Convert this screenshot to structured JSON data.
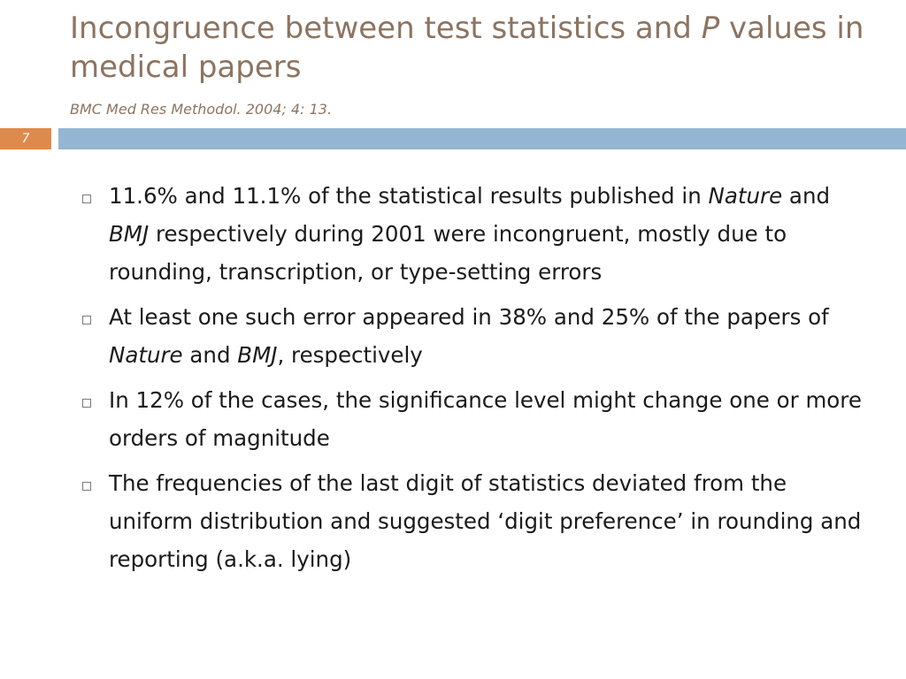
{
  "title": {
    "part1": "Incongruence between test statistics and ",
    "italic": "P",
    "part2": " values in medical papers"
  },
  "subtitle": "BMC Med Res Methodol. 2004; 4: 13.",
  "slide_number": "7",
  "colors": {
    "title": "#8c7461",
    "accent_orange": "#de8a4c",
    "accent_blue": "#94b6d2",
    "body_text": "#1a1a1a"
  },
  "bullets": [
    {
      "t1": "11.6% and 11.1% of the statistical results published in ",
      "i1": "Nature",
      "t2": " and ",
      "i2": "BMJ",
      "t3": " respectively during 2001 were incongruent, mostly due to rounding, transcription, or type-setting errors"
    },
    {
      "t1": "At least one such error appeared in 38% and 25% of the papers of ",
      "i1": "Nature",
      "t2": " and ",
      "i2": "BMJ",
      "t3": ", respectively"
    },
    {
      "t1": "In 12% of the cases, the significance level might change one or more orders of magnitude"
    },
    {
      "t1": "The frequencies of the last digit of statistics deviated from the uniform distribution and suggested ‘digit preference’ in rounding and reporting (a.k.a. lying)"
    }
  ]
}
